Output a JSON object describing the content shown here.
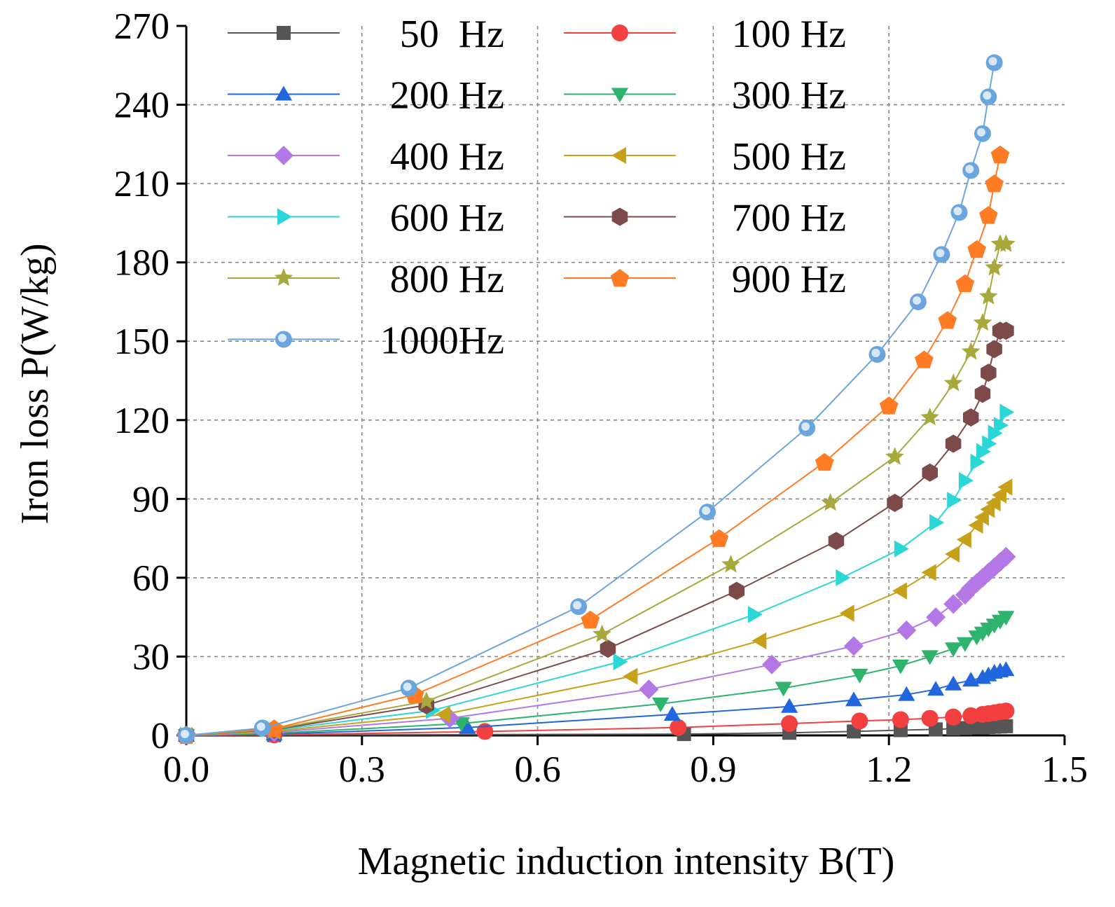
{
  "chart_data": {
    "type": "line",
    "title": "",
    "xlabel": "Magnetic induction intensity B(T)",
    "ylabel": "Iron loss P(W/kg)",
    "xlim": [
      0.0,
      1.5
    ],
    "ylim": [
      0,
      270
    ],
    "xticks": [
      "0.0",
      "0.3",
      "0.6",
      "0.9",
      "1.2",
      "1.5"
    ],
    "xtick_values": [
      0.0,
      0.3,
      0.6,
      0.9,
      1.2,
      1.5
    ],
    "yticks": [
      "0",
      "30",
      "60",
      "90",
      "120",
      "150",
      "180",
      "210",
      "240",
      "270"
    ],
    "ytick_values": [
      0,
      30,
      60,
      90,
      120,
      150,
      180,
      210,
      240,
      270
    ],
    "grid": "dashed",
    "legend_position": "top-left",
    "series": [
      {
        "name": "50  Hz",
        "color": "#555555",
        "marker": "square",
        "x": [
          0.0,
          0.15,
          0.85,
          1.03,
          1.14,
          1.22,
          1.28,
          1.31,
          1.33,
          1.35,
          1.36,
          1.37,
          1.38,
          1.39,
          1.4
        ],
        "y": [
          0,
          0.1,
          0.5,
          1.0,
          1.5,
          2.0,
          2.3,
          2.6,
          2.8,
          3.0,
          3.1,
          3.2,
          3.3,
          3.4,
          3.5
        ]
      },
      {
        "name": "100 Hz",
        "color": "#f24040",
        "marker": "circle",
        "x": [
          0.0,
          0.15,
          0.51,
          0.84,
          1.03,
          1.15,
          1.22,
          1.27,
          1.31,
          1.34,
          1.36,
          1.37,
          1.38,
          1.39,
          1.4
        ],
        "y": [
          0,
          0.2,
          1.5,
          3.0,
          4.5,
          5.5,
          6.0,
          6.5,
          7.0,
          7.5,
          8.0,
          8.3,
          8.6,
          9.0,
          9.3
        ]
      },
      {
        "name": "200 Hz",
        "color": "#2266dd",
        "marker": "triangle-up",
        "x": [
          0.0,
          0.15,
          0.48,
          0.83,
          1.03,
          1.14,
          1.23,
          1.28,
          1.31,
          1.34,
          1.36,
          1.37,
          1.38,
          1.39,
          1.4
        ],
        "y": [
          0,
          0.5,
          3.0,
          8.0,
          11.0,
          13.5,
          15.5,
          17.5,
          19.5,
          21.0,
          22.0,
          23.0,
          24.0,
          24.5,
          25.0
        ]
      },
      {
        "name": "300 Hz",
        "color": "#2db36b",
        "marker": "triangle-down",
        "x": [
          0.0,
          0.15,
          0.47,
          0.81,
          1.02,
          1.15,
          1.22,
          1.27,
          1.31,
          1.33,
          1.35,
          1.36,
          1.37,
          1.38,
          1.39,
          1.4
        ],
        "y": [
          0,
          0.8,
          4.5,
          12.0,
          18.0,
          23.0,
          26.5,
          30.0,
          33.0,
          35.0,
          37.5,
          39.0,
          40.5,
          42.0,
          43.5,
          45.0
        ]
      },
      {
        "name": "400 Hz",
        "color": "#b477e6",
        "marker": "diamond",
        "x": [
          0.0,
          0.15,
          0.45,
          0.79,
          1.0,
          1.14,
          1.23,
          1.28,
          1.31,
          1.33,
          1.34,
          1.35,
          1.36,
          1.37,
          1.38,
          1.39,
          1.4
        ],
        "y": [
          0,
          1.2,
          6.5,
          17.5,
          27.0,
          34.0,
          40.0,
          45.0,
          50.0,
          53.5,
          56.0,
          58.0,
          60.0,
          62.0,
          64.0,
          66.0,
          68.0
        ]
      },
      {
        "name": "500 Hz",
        "color": "#c8a11a",
        "marker": "triangle-left",
        "x": [
          0.0,
          0.15,
          0.44,
          0.76,
          0.98,
          1.13,
          1.22,
          1.27,
          1.31,
          1.33,
          1.35,
          1.36,
          1.37,
          1.38,
          1.39,
          1.4
        ],
        "y": [
          0,
          1.6,
          8.0,
          22.5,
          36.0,
          46.5,
          55.0,
          62.0,
          69.0,
          74.5,
          80.0,
          83.0,
          86.0,
          88.5,
          91.5,
          94.5
        ]
      },
      {
        "name": "600 Hz",
        "color": "#2bd6d6",
        "marker": "triangle-right",
        "x": [
          0.0,
          0.15,
          0.42,
          0.74,
          0.97,
          1.12,
          1.22,
          1.28,
          1.31,
          1.33,
          1.35,
          1.36,
          1.37,
          1.38,
          1.39,
          1.4
        ],
        "y": [
          0,
          2.0,
          9.5,
          28.0,
          46.0,
          60.0,
          71.0,
          81.0,
          89.5,
          97.0,
          104.0,
          108.0,
          111.0,
          115.0,
          118.0,
          123.0
        ]
      },
      {
        "name": "700 Hz",
        "color": "#7d4a4a",
        "marker": "hexagon",
        "x": [
          0.0,
          0.15,
          0.41,
          0.72,
          0.94,
          1.11,
          1.21,
          1.27,
          1.31,
          1.34,
          1.36,
          1.37,
          1.38,
          1.39,
          1.4
        ],
        "y": [
          0,
          2.2,
          11.5,
          33.0,
          55.0,
          74.0,
          88.5,
          100.0,
          111.0,
          121.0,
          130.0,
          138.0,
          147.0,
          154.0,
          154.0
        ]
      },
      {
        "name": "800 Hz",
        "color": "#a8a83d",
        "marker": "star",
        "x": [
          0.0,
          0.15,
          0.41,
          0.71,
          0.93,
          1.1,
          1.21,
          1.27,
          1.31,
          1.34,
          1.36,
          1.37,
          1.38,
          1.39,
          1.4
        ],
        "y": [
          0,
          2.4,
          13.0,
          38.5,
          65.0,
          88.5,
          106.0,
          121.0,
          134.0,
          146.0,
          157.0,
          167.0,
          178.0,
          187.0,
          187.0
        ]
      },
      {
        "name": "900 Hz",
        "color": "#ff7b24",
        "marker": "pentagon",
        "x": [
          0.0,
          0.15,
          0.39,
          0.69,
          0.91,
          1.09,
          1.2,
          1.26,
          1.3,
          1.33,
          1.35,
          1.37,
          1.38,
          1.39
        ],
        "y": [
          0,
          2.6,
          15.5,
          44.0,
          75.0,
          104.0,
          125.5,
          143.0,
          158.0,
          172.0,
          185.0,
          198.0,
          210.0,
          221.0
        ]
      },
      {
        "name": "1000Hz",
        "color": "#6aa5dd",
        "marker": "sphere",
        "x": [
          0.0,
          0.13,
          0.38,
          0.67,
          0.89,
          1.06,
          1.18,
          1.25,
          1.29,
          1.32,
          1.34,
          1.36,
          1.37,
          1.38
        ],
        "y": [
          0,
          2.8,
          18.0,
          49.0,
          85.0,
          117.0,
          145.0,
          165.0,
          183.0,
          199.0,
          215.0,
          229.0,
          243.0,
          256.0
        ]
      }
    ]
  }
}
